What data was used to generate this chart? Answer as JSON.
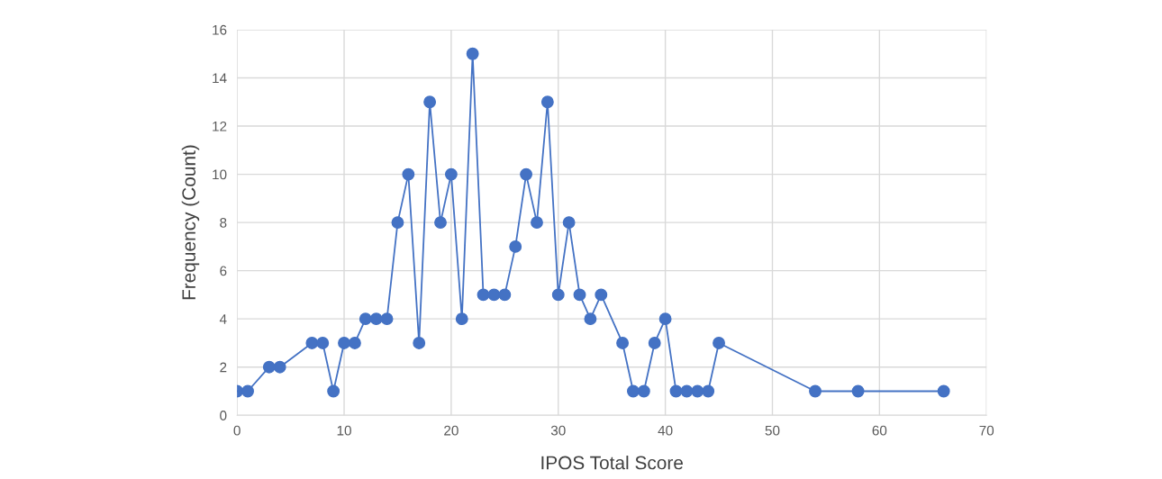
{
  "chart_data": {
    "type": "line",
    "xlabel": "IPOS Total Score",
    "ylabel": "Frequency (Count)",
    "x": [
      0,
      1,
      3,
      4,
      7,
      8,
      9,
      10,
      11,
      12,
      13,
      14,
      15,
      16,
      17,
      18,
      19,
      20,
      21,
      22,
      23,
      24,
      25,
      26,
      27,
      28,
      29,
      30,
      31,
      32,
      33,
      34,
      36,
      37,
      38,
      39,
      40,
      41,
      42,
      43,
      44,
      45,
      54,
      58,
      66
    ],
    "values": [
      1,
      1,
      2,
      2,
      3,
      3,
      1,
      3,
      3,
      4,
      4,
      4,
      8,
      10,
      3,
      13,
      8,
      10,
      4,
      15,
      5,
      5,
      5,
      7,
      10,
      8,
      13,
      5,
      8,
      5,
      4,
      5,
      3,
      1,
      1,
      3,
      4,
      1,
      1,
      1,
      1,
      3,
      1,
      1,
      1
    ],
    "color": "#4472c4",
    "marker": "circle",
    "line_style": "solid",
    "xlim": [
      0,
      70
    ],
    "xticks": [
      0,
      10,
      20,
      30,
      40,
      50,
      60,
      70
    ],
    "ylim": [
      0,
      16
    ],
    "yticks": [
      0,
      2,
      4,
      6,
      8,
      10,
      12,
      14,
      16
    ],
    "grid": true
  }
}
